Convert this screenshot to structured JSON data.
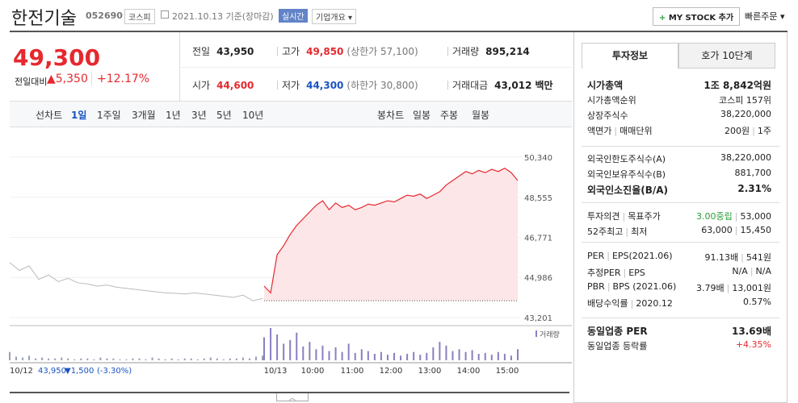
{
  "header": {
    "name": "한전기술",
    "code": "052690",
    "market": "코스피",
    "date": "2021.10.13 기준(장마감)",
    "realtime": "실시간",
    "company_info": "기업개요",
    "my_stock": "MY STOCK 추가",
    "quick_order": "빠른주문"
  },
  "price": {
    "current": "49,300",
    "change_label": "전일대비",
    "change": "▲5,350",
    "rate": "+12.17%"
  },
  "summary": [
    {
      "label": "전일",
      "value": "43,950"
    },
    {
      "label": "고가",
      "value": "49,850",
      "note": "(상한가 57,100)"
    },
    {
      "label": "거래량",
      "value": "895,214"
    },
    {
      "label": "시가",
      "value": "44,600"
    },
    {
      "label": "저가",
      "value": "44,300",
      "note": "(하한가 30,800)"
    },
    {
      "label": "거래대금",
      "value": "43,012",
      "note": "백만"
    }
  ],
  "chart_tabs": {
    "line_label": "선차트",
    "periods": [
      "1일",
      "1주일",
      "3개월",
      "1년",
      "3년",
      "5년",
      "10년"
    ],
    "candle_label": "봉차트",
    "candles": [
      "일봉",
      "주봉",
      "월봉"
    ]
  },
  "chart": {
    "type": "line",
    "ylim": [
      43201,
      50340
    ],
    "yticks": [
      {
        "value": 50340,
        "label": "50,340"
      },
      {
        "value": 48555,
        "label": "48,555"
      },
      {
        "value": 46771,
        "label": "46,771"
      },
      {
        "value": 44986,
        "label": "44,986"
      },
      {
        "value": 43201,
        "label": "43,201"
      }
    ],
    "prev_close": 43950,
    "prev_values": [
      45650,
      45300,
      45500,
      44900,
      45100,
      44800,
      44950,
      44750,
      44700,
      44600,
      44650,
      44550,
      44500,
      44450,
      44400,
      44350,
      44300,
      44280,
      44250,
      44300,
      44250,
      44200,
      44150,
      44100,
      44200,
      43950,
      44050
    ],
    "today_values": [
      44600,
      44300,
      46000,
      46400,
      46900,
      47300,
      47600,
      47900,
      48200,
      48400,
      48000,
      48300,
      48100,
      48200,
      48000,
      48100,
      48250,
      48200,
      48300,
      48400,
      48350,
      48500,
      48650,
      48600,
      48700,
      48500,
      48650,
      48800,
      49100,
      49300,
      49500,
      49700,
      49600,
      49750,
      49650,
      49800,
      49700,
      49850,
      49650,
      49300
    ],
    "volume_label": "거래량",
    "volume_prev": [
      9,
      4,
      3,
      5,
      2,
      3,
      2,
      2,
      3,
      2,
      1,
      2,
      2,
      1,
      3,
      2,
      2,
      1,
      1,
      2,
      2,
      1,
      3,
      2,
      1,
      2,
      1,
      2,
      2,
      1,
      2,
      3,
      2,
      1,
      2,
      2,
      3,
      2,
      4,
      5
    ],
    "volume_today": [
      25,
      35,
      28,
      18,
      22,
      30,
      15,
      20,
      12,
      16,
      10,
      14,
      9,
      18,
      8,
      12,
      10,
      7,
      9,
      6,
      8,
      5,
      7,
      9,
      6,
      8,
      14,
      20,
      16,
      10,
      12,
      9,
      11,
      7,
      8,
      6,
      9,
      7,
      5,
      12
    ],
    "x_labels": [
      "10/13",
      "10:00",
      "11:00",
      "12:00",
      "13:00",
      "14:00",
      "15:00"
    ],
    "prev_day": {
      "date": "10/12",
      "close": "43,950",
      "change": "▼1,500",
      "rate": "(-3.30%)"
    }
  },
  "invest": {
    "tabs": [
      "투자정보",
      "호가 10단계"
    ],
    "sections": [
      [
        {
          "label": [
            "시가총액"
          ],
          "value": [
            "1조 8,842억원"
          ]
        },
        {
          "label": [
            "시가총액순위"
          ],
          "value": [
            "코스피 157위"
          ]
        },
        {
          "label": [
            "상장주식수"
          ],
          "value": [
            "38,220,000"
          ]
        },
        {
          "label": [
            "액면가",
            "매매단위"
          ],
          "value": [
            "200원",
            "1주"
          ]
        }
      ],
      [
        {
          "label": [
            "외국인한도주식수(A)"
          ],
          "value": [
            "38,220,000"
          ]
        },
        {
          "label": [
            "외국인보유주식수(B)"
          ],
          "value": [
            "881,700"
          ]
        },
        {
          "label": [
            "외국인소진율(B/A)"
          ],
          "value": [
            "2.31%"
          ]
        }
      ],
      [
        {
          "label": [
            "투자의견",
            "목표주가"
          ],
          "value": [
            "3.00중립",
            "53,000"
          ]
        },
        {
          "label": [
            "52주최고",
            "최저"
          ],
          "value": [
            "63,000",
            "15,450"
          ]
        }
      ],
      [
        {
          "label": [
            "PER",
            "EPS(2021.06)"
          ],
          "value": [
            "91.13배",
            "541원"
          ]
        },
        {
          "label": [
            "추정PER",
            "EPS"
          ],
          "value": [
            "N/A",
            "N/A"
          ]
        },
        {
          "label": [
            "PBR",
            "BPS (2021.06)"
          ],
          "value": [
            "3.79배",
            "13,001원"
          ]
        },
        {
          "label": [
            "배당수익률",
            "2020.12"
          ],
          "value": [
            "0.57%"
          ]
        }
      ],
      [
        {
          "label": [
            "동일업종 PER"
          ],
          "value": [
            "13.69배"
          ]
        },
        {
          "label": [
            "동일업종 등락률"
          ],
          "value": [
            "+4.35%"
          ]
        }
      ]
    ]
  }
}
